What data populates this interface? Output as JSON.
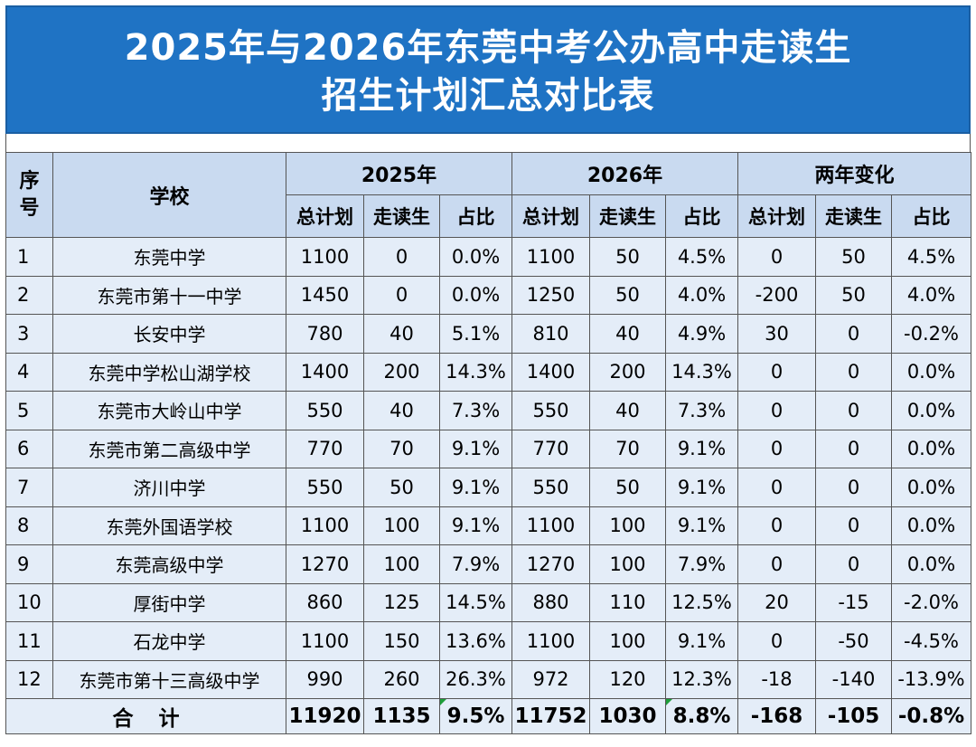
{
  "title": {
    "line1": "2025年与2026年东莞中考公办高中走读生",
    "line2": "招生计划汇总对比表"
  },
  "header": {
    "index": "序号",
    "school": "学校",
    "groups": [
      "2025年",
      "2026年",
      "两年变化"
    ],
    "subcolumns": [
      "总计划",
      "走读生",
      "占比"
    ]
  },
  "rows": [
    {
      "no": "1",
      "school": "东莞中学",
      "y2025": [
        "1100",
        "0",
        "0.0%"
      ],
      "y2026": [
        "1100",
        "50",
        "4.5%"
      ],
      "change": [
        "0",
        "50",
        "4.5%"
      ]
    },
    {
      "no": "2",
      "school": "东莞市第十一中学",
      "y2025": [
        "1450",
        "0",
        "0.0%"
      ],
      "y2026": [
        "1250",
        "50",
        "4.0%"
      ],
      "change": [
        "-200",
        "50",
        "4.0%"
      ]
    },
    {
      "no": "3",
      "school": "长安中学",
      "y2025": [
        "780",
        "40",
        "5.1%"
      ],
      "y2026": [
        "810",
        "40",
        "4.9%"
      ],
      "change": [
        "30",
        "0",
        "-0.2%"
      ]
    },
    {
      "no": "4",
      "school": "东莞中学松山湖学校",
      "y2025": [
        "1400",
        "200",
        "14.3%"
      ],
      "y2026": [
        "1400",
        "200",
        "14.3%"
      ],
      "change": [
        "0",
        "0",
        "0.0%"
      ]
    },
    {
      "no": "5",
      "school": "东莞市大岭山中学",
      "y2025": [
        "550",
        "40",
        "7.3%"
      ],
      "y2026": [
        "550",
        "40",
        "7.3%"
      ],
      "change": [
        "0",
        "0",
        "0.0%"
      ]
    },
    {
      "no": "6",
      "school": "东莞市第二高级中学",
      "y2025": [
        "770",
        "70",
        "9.1%"
      ],
      "y2026": [
        "770",
        "70",
        "9.1%"
      ],
      "change": [
        "0",
        "0",
        "0.0%"
      ]
    },
    {
      "no": "7",
      "school": "济川中学",
      "y2025": [
        "550",
        "50",
        "9.1%"
      ],
      "y2026": [
        "550",
        "50",
        "9.1%"
      ],
      "change": [
        "0",
        "0",
        "0.0%"
      ]
    },
    {
      "no": "8",
      "school": "东莞外国语学校",
      "y2025": [
        "1100",
        "100",
        "9.1%"
      ],
      "y2026": [
        "1100",
        "100",
        "9.1%"
      ],
      "change": [
        "0",
        "0",
        "0.0%"
      ]
    },
    {
      "no": "9",
      "school": "东莞高级中学",
      "y2025": [
        "1270",
        "100",
        "7.9%"
      ],
      "y2026": [
        "1270",
        "100",
        "7.9%"
      ],
      "change": [
        "0",
        "0",
        "0.0%"
      ]
    },
    {
      "no": "10",
      "school": "厚街中学",
      "y2025": [
        "860",
        "125",
        "14.5%"
      ],
      "y2026": [
        "880",
        "110",
        "12.5%"
      ],
      "change": [
        "20",
        "-15",
        "-2.0%"
      ]
    },
    {
      "no": "11",
      "school": "石龙中学",
      "y2025": [
        "1100",
        "150",
        "13.6%"
      ],
      "y2026": [
        "1100",
        "100",
        "9.1%"
      ],
      "change": [
        "0",
        "-50",
        "-4.5%"
      ]
    },
    {
      "no": "12",
      "school": "东莞市第十三高级中学",
      "y2025": [
        "990",
        "260",
        "26.3%"
      ],
      "y2026": [
        "972",
        "120",
        "12.3%"
      ],
      "change": [
        "-18",
        "-140",
        "-13.9%"
      ]
    }
  ],
  "total": {
    "label": "合计",
    "y2025": [
      "11920",
      "1135",
      "9.5%"
    ],
    "y2026": [
      "11752",
      "1030",
      "8.8%"
    ],
    "change": [
      "-168",
      "-105",
      "-0.8%"
    ]
  },
  "colors": {
    "title_bg": "#1f73c4",
    "header_bg": "#c9daf0",
    "cell_bg": "#e4edf8",
    "marker": "#1e9e3a"
  }
}
